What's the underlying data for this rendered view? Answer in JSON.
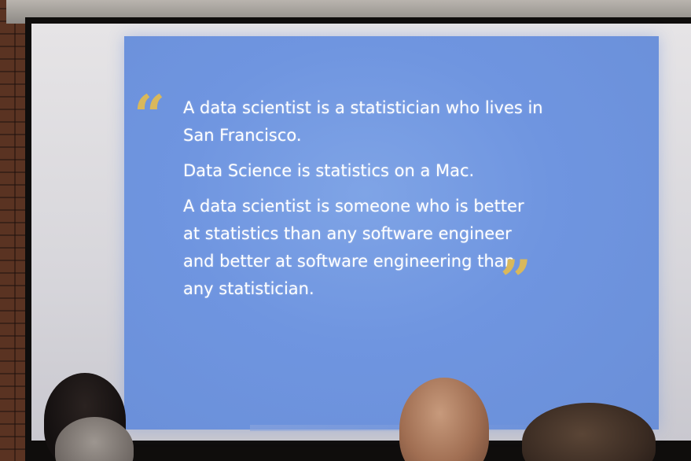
{
  "slide": {
    "quote_open": "“",
    "quote_close": "”",
    "lines": [
      "A data scientist is a statistician who lives in San Francisco.",
      "Data Science is statistics on a Mac.",
      "A data scientist is someone who is better at statistics than any software engineer and better at software engineering than any statistician."
    ]
  },
  "colors": {
    "slide_background": "#6f95e0",
    "quote_mark": "#d9b85b",
    "text": "#ffffff"
  }
}
